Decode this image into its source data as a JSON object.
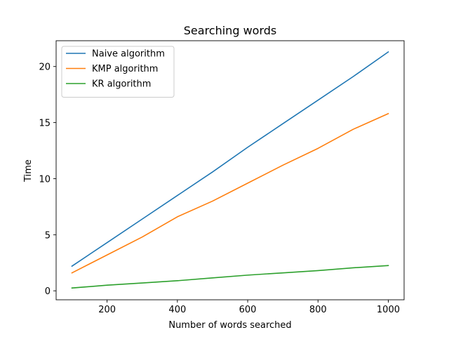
{
  "chart_data": {
    "type": "line",
    "title": "Searching words",
    "xlabel": "Number of words searched",
    "ylabel": "Time",
    "xlim": [
      55,
      1045
    ],
    "ylim": [
      -0.8,
      22.3
    ],
    "xticks": [
      200,
      400,
      600,
      800,
      1000
    ],
    "yticks": [
      0,
      5,
      10,
      15,
      20
    ],
    "legend_position": "top-left",
    "series": [
      {
        "name": "Naive algorithm",
        "color": "#1f77b4",
        "x": [
          100,
          200,
          300,
          400,
          500,
          600,
          700,
          800,
          900,
          1000
        ],
        "y": [
          2.2,
          4.3,
          6.4,
          8.5,
          10.6,
          12.8,
          14.9,
          17.0,
          19.1,
          21.3
        ]
      },
      {
        "name": "KMP algorithm",
        "color": "#ff7f0e",
        "x": [
          100,
          200,
          300,
          400,
          500,
          600,
          700,
          800,
          900,
          1000
        ],
        "y": [
          1.6,
          3.2,
          4.8,
          6.6,
          8.0,
          9.6,
          11.2,
          12.7,
          14.4,
          15.8
        ]
      },
      {
        "name": "KR algorithm",
        "color": "#2ca02c",
        "x": [
          100,
          200,
          300,
          400,
          500,
          600,
          700,
          800,
          900,
          1000
        ],
        "y": [
          0.25,
          0.5,
          0.7,
          0.9,
          1.15,
          1.4,
          1.6,
          1.8,
          2.05,
          2.25
        ]
      }
    ]
  }
}
